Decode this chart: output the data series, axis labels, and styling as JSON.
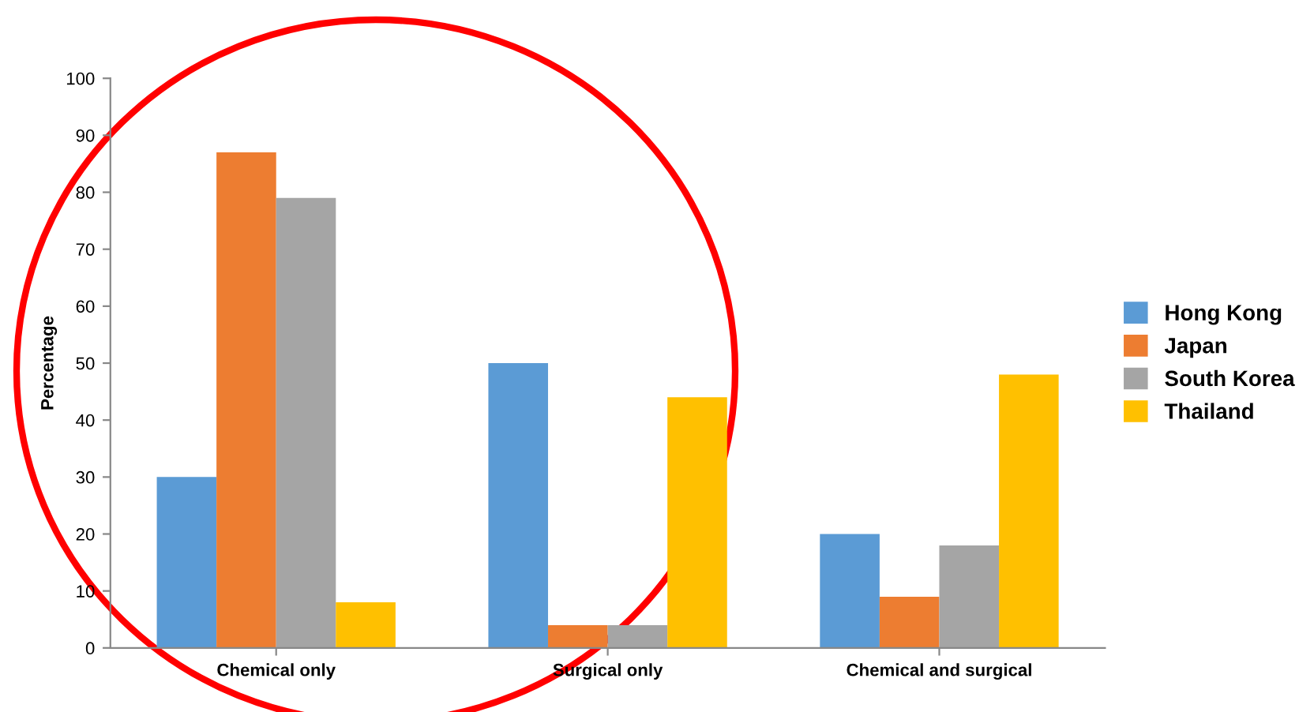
{
  "chart_data": {
    "type": "bar",
    "ylabel": "Percentage",
    "categories": [
      "Chemical only",
      "Surgical only",
      "Chemical and surgical"
    ],
    "series": [
      {
        "name": "Hong Kong",
        "color": "#5b9bd5",
        "values": [
          30,
          50,
          20
        ]
      },
      {
        "name": "Japan",
        "color": "#ed7d31",
        "values": [
          87,
          4,
          9
        ]
      },
      {
        "name": "South Korea",
        "color": "#a5a5a5",
        "values": [
          79,
          4,
          18
        ]
      },
      {
        "name": "Thailand",
        "color": "#ffc000",
        "values": [
          8,
          44,
          48
        ]
      }
    ],
    "ylim": [
      0,
      100
    ],
    "yticks": [
      0,
      10,
      20,
      30,
      40,
      50,
      60,
      70,
      80,
      90,
      100
    ],
    "grid": false,
    "legend": "right"
  }
}
